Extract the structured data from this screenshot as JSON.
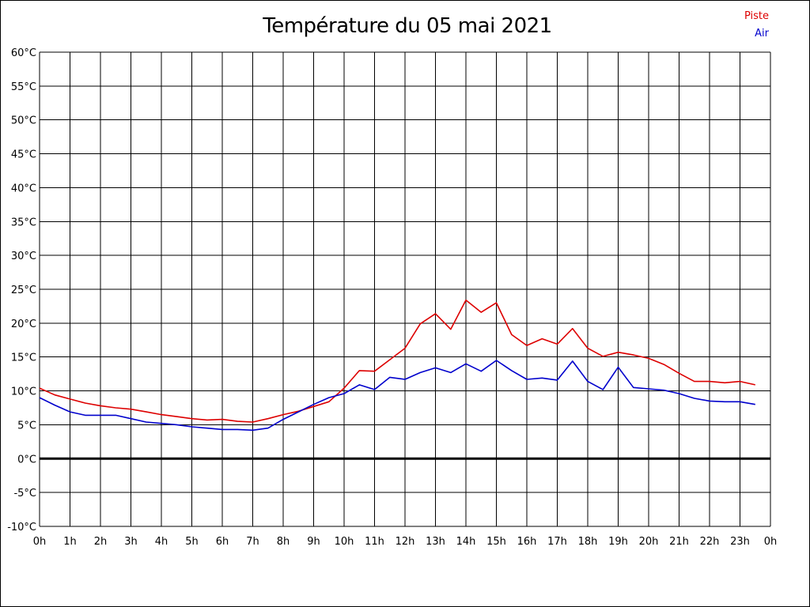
{
  "chart_data": {
    "type": "line",
    "title": "Température du 05 mai 2021",
    "xlabel": "",
    "ylabel": "",
    "x_ticks": [
      "0h",
      "1h",
      "2h",
      "3h",
      "4h",
      "5h",
      "6h",
      "7h",
      "8h",
      "9h",
      "10h",
      "11h",
      "12h",
      "13h",
      "14h",
      "15h",
      "16h",
      "17h",
      "18h",
      "19h",
      "20h",
      "21h",
      "22h",
      "23h",
      "0h"
    ],
    "y_ticks": [
      "60°C",
      "55°C",
      "50°C",
      "45°C",
      "40°C",
      "35°C",
      "30°C",
      "25°C",
      "20°C",
      "15°C",
      "10°C",
      "5°C",
      "0°C",
      "-5°C",
      "-10°C"
    ],
    "xlim": [
      0,
      24
    ],
    "ylim": [
      -10,
      60
    ],
    "grid": true,
    "legend_position": "top-right",
    "x": [
      0,
      0.5,
      1,
      1.5,
      2,
      2.5,
      3,
      3.5,
      4,
      4.5,
      5,
      5.5,
      6,
      6.5,
      7,
      7.5,
      8,
      8.5,
      9,
      9.5,
      10,
      10.5,
      11,
      11.5,
      12,
      12.5,
      13,
      13.5,
      14,
      14.5,
      15,
      15.5,
      16,
      16.5,
      17,
      17.5,
      18,
      18.5,
      19,
      19.5,
      20,
      20.5,
      21,
      21.5,
      22,
      22.5,
      23,
      23.5
    ],
    "series": [
      {
        "name": "Piste",
        "color": "#dd0000",
        "values": [
          10.4,
          9.4,
          8.8,
          8.2,
          7.8,
          7.5,
          7.3,
          6.9,
          6.5,
          6.2,
          5.9,
          5.7,
          5.8,
          5.5,
          5.4,
          5.9,
          6.5,
          7.0,
          7.7,
          8.4,
          10.4,
          13.0,
          12.9,
          14.6,
          16.3,
          19.9,
          21.4,
          19.1,
          23.4,
          21.6,
          23.0,
          18.3,
          16.7,
          17.7,
          16.9,
          19.2,
          16.3,
          15.1,
          15.7,
          15.3,
          14.8,
          13.9,
          12.6,
          11.4,
          11.4,
          11.2,
          11.4,
          10.9
        ]
      },
      {
        "name": "Air",
        "color": "#0000cc",
        "values": [
          9.0,
          7.9,
          6.9,
          6.4,
          6.4,
          6.4,
          5.9,
          5.4,
          5.2,
          5.0,
          4.7,
          4.5,
          4.3,
          4.3,
          4.2,
          4.5,
          5.8,
          6.9,
          8.0,
          9.0,
          9.6,
          10.9,
          10.2,
          12.0,
          11.7,
          12.7,
          13.4,
          12.7,
          14.0,
          12.9,
          14.5,
          13.0,
          11.7,
          11.9,
          11.6,
          14.4,
          11.4,
          10.2,
          13.5,
          10.5,
          10.3,
          10.1,
          9.6,
          8.9,
          8.5,
          8.4,
          8.4,
          8.0
        ]
      }
    ]
  }
}
